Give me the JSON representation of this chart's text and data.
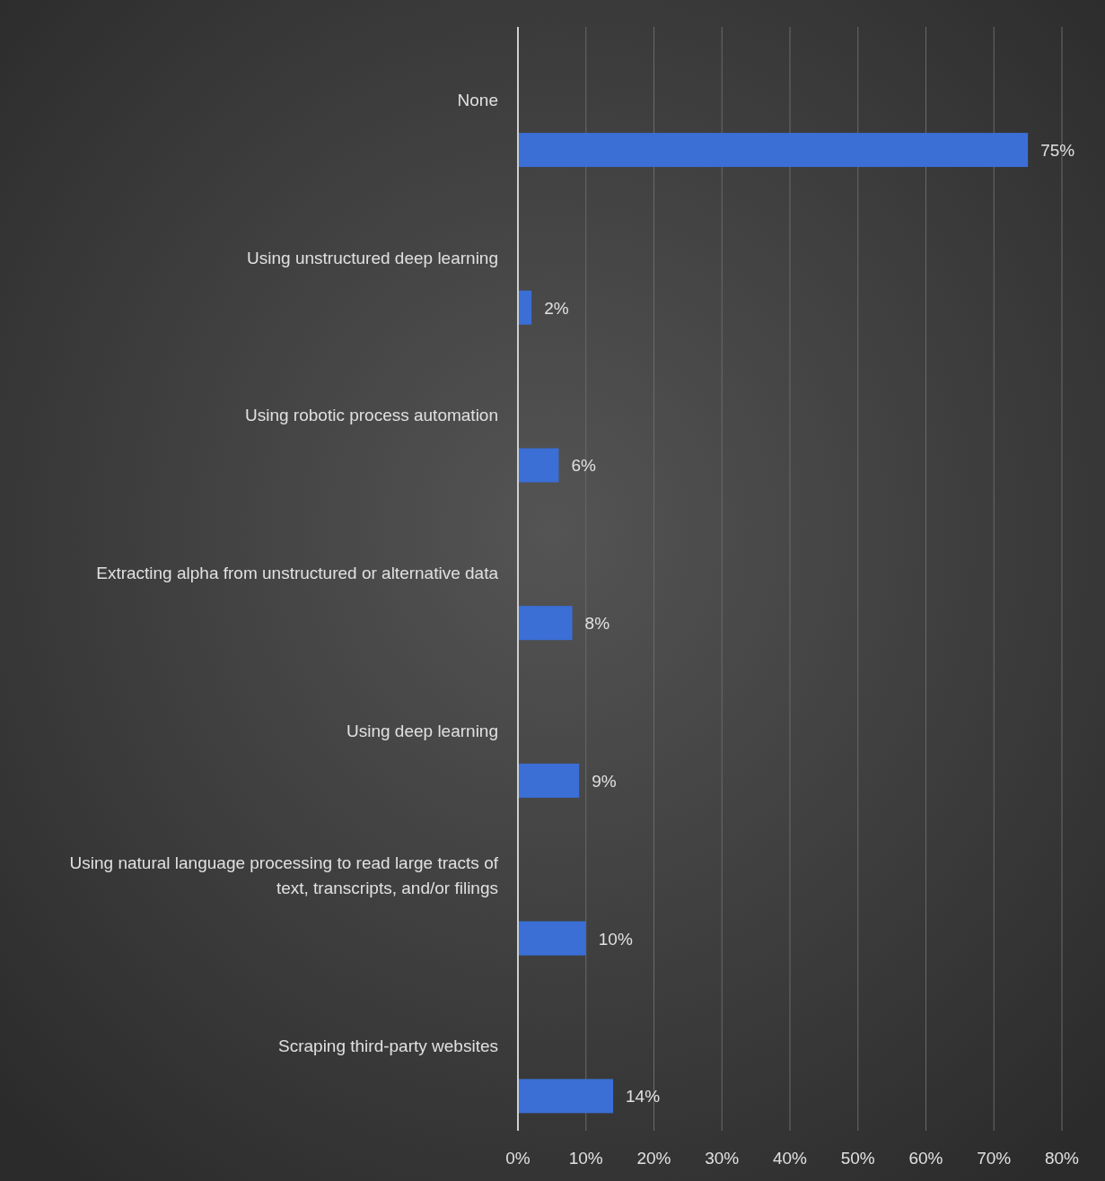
{
  "chart_data": {
    "type": "bar",
    "orientation": "horizontal",
    "categories": [
      "None",
      "Using unstructured deep learning",
      "Using robotic process automation",
      "Extracting alpha from unstructured or alternative data",
      "Using deep learning",
      "Using natural language processing to read large tracts of text, transcripts, and/or filings",
      "Scraping third-party websites"
    ],
    "values": [
      75,
      2,
      6,
      8,
      9,
      10,
      14
    ],
    "color": "#3b6fd6",
    "xlim": [
      0,
      80
    ],
    "xticks": [
      {
        "value": 0,
        "label": "0%"
      },
      {
        "value": 10,
        "label": "10%"
      },
      {
        "value": 20,
        "label": "20%"
      },
      {
        "value": 30,
        "label": "30%"
      },
      {
        "value": 40,
        "label": "40%"
      },
      {
        "value": 50,
        "label": "50%"
      },
      {
        "value": 60,
        "label": "60%"
      },
      {
        "value": 70,
        "label": "70%"
      },
      {
        "value": 80,
        "label": "80%"
      }
    ],
    "value_labels": [
      "75%",
      "2%",
      "6%",
      "8%",
      "9%",
      "10%",
      "14%"
    ],
    "grid": "x"
  }
}
